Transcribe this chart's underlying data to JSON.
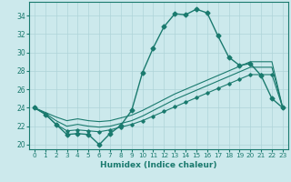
{
  "xlabel": "Humidex (Indice chaleur)",
  "background_color": "#cce9ec",
  "grid_color": "#aed4d8",
  "line_color": "#1a7a6e",
  "xlim": [
    -0.5,
    23.5
  ],
  "ylim": [
    19.5,
    35.5
  ],
  "xticks": [
    0,
    1,
    2,
    3,
    4,
    5,
    6,
    7,
    8,
    9,
    10,
    11,
    12,
    13,
    14,
    15,
    16,
    17,
    18,
    19,
    20,
    21,
    22,
    23
  ],
  "yticks": [
    20,
    22,
    24,
    26,
    28,
    30,
    32,
    34
  ],
  "series1": [
    24.0,
    23.3,
    22.2,
    21.1,
    21.2,
    21.1,
    20.0,
    21.2,
    22.1,
    23.7,
    27.8,
    30.5,
    32.8,
    34.2,
    34.1,
    34.7,
    34.3,
    31.8,
    29.5,
    28.6,
    28.8,
    27.5,
    25.0,
    24.0
  ],
  "series2": [
    24.0,
    23.3,
    22.2,
    21.5,
    21.6,
    21.5,
    21.4,
    21.6,
    21.9,
    22.2,
    22.6,
    23.1,
    23.6,
    24.1,
    24.6,
    25.1,
    25.6,
    26.1,
    26.6,
    27.1,
    27.6,
    27.6,
    27.6,
    24.0
  ],
  "series3_top": [
    24.0,
    23.5,
    23.0,
    22.6,
    22.8,
    22.6,
    22.5,
    22.6,
    22.9,
    23.2,
    23.7,
    24.3,
    24.9,
    25.5,
    26.0,
    26.5,
    27.0,
    27.5,
    28.0,
    28.5,
    29.0,
    29.0,
    29.0,
    24.0
  ],
  "series3_mid": [
    24.0,
    23.4,
    22.6,
    22.0,
    22.2,
    22.0,
    21.9,
    22.0,
    22.3,
    22.6,
    23.1,
    23.7,
    24.3,
    24.9,
    25.4,
    25.9,
    26.4,
    26.9,
    27.4,
    27.9,
    28.4,
    28.4,
    28.4,
    24.0
  ]
}
